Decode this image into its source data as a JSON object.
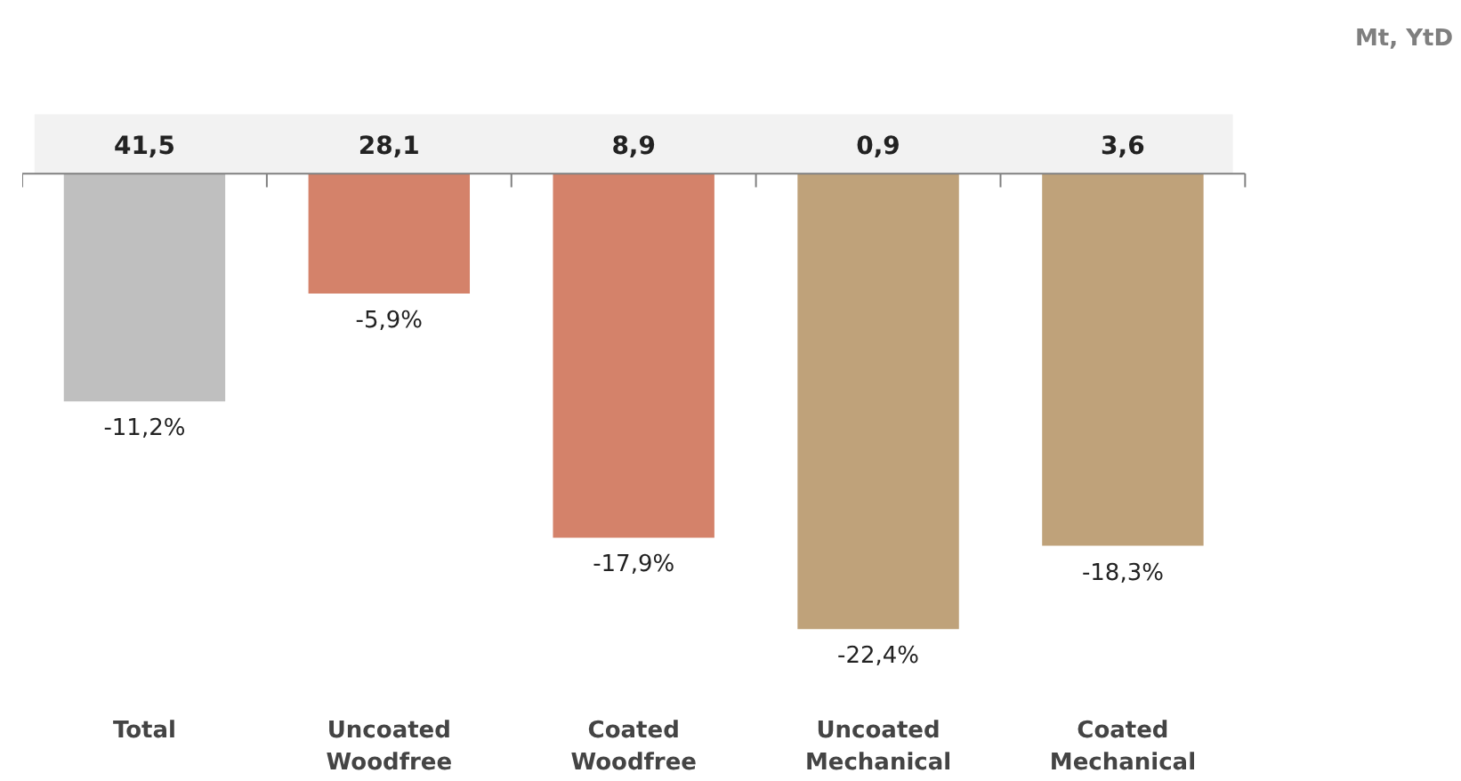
{
  "chart_data": {
    "type": "bar",
    "categories": [
      "Total",
      "Uncoated Woodfree",
      "Coated Woodfree",
      "Uncoated Mechanical",
      "Coated Mechanical"
    ],
    "values": [
      -11.2,
      -5.9,
      -17.9,
      -22.4,
      -18.3
    ],
    "colors": [
      "#bfbfbf",
      "#d4826a",
      "#d4826a",
      "#bfa27a",
      "#bfa27a"
    ],
    "value_labels": [
      "-11,2%",
      "-5,9%",
      "-17,9%",
      "-22,4%",
      "-18,3%"
    ],
    "annotations": [
      "Mt, YtD",
      "41,5",
      "28,1",
      "8,9",
      "0,9",
      "3,6"
    ],
    "grid": false
  }
}
